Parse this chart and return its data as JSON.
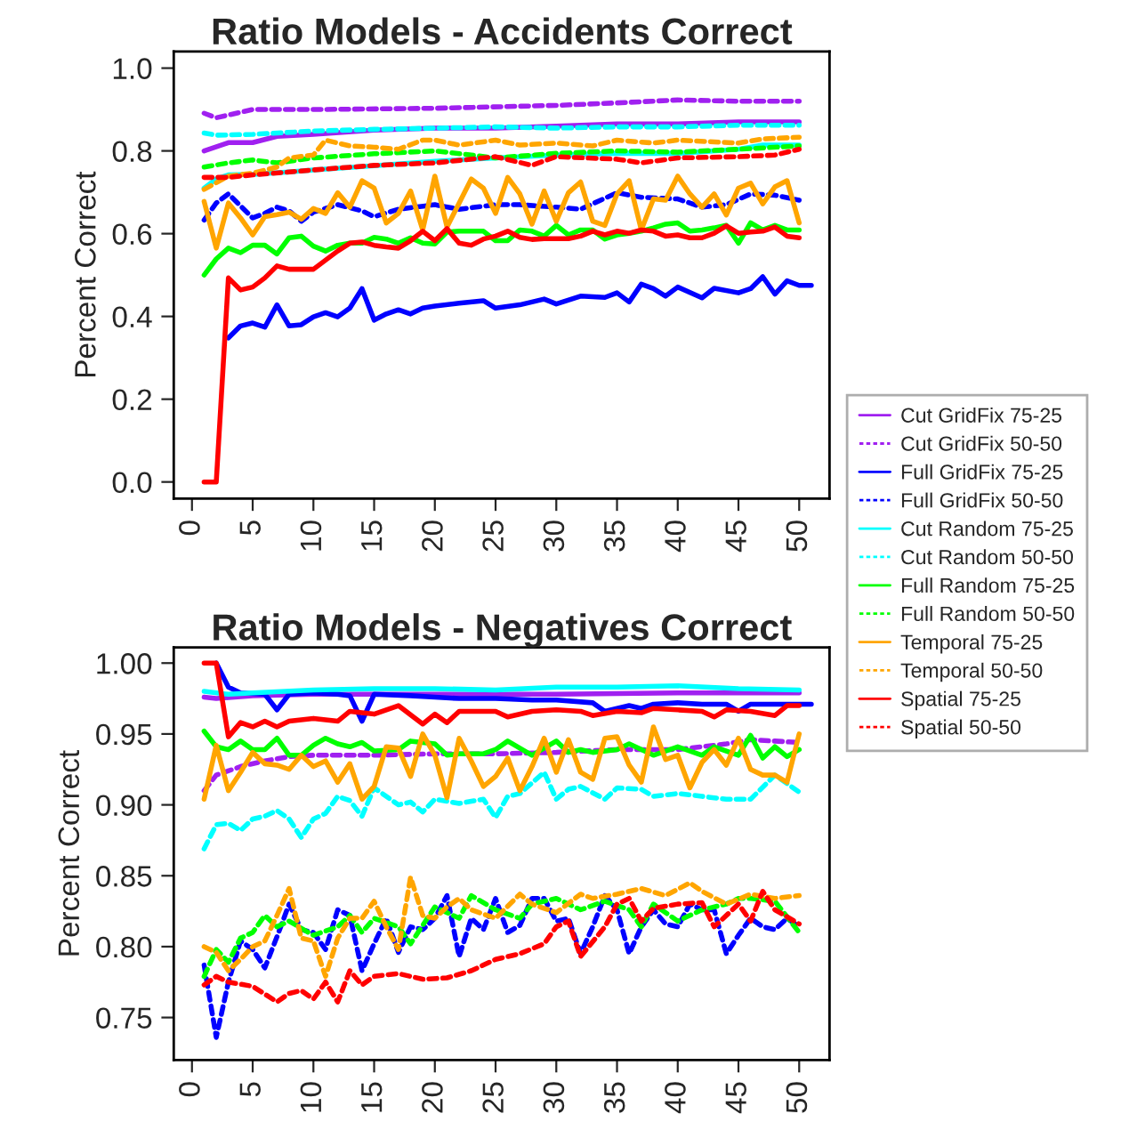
{
  "chart_data": [
    {
      "type": "line",
      "title": "Ratio Models - Accidents Correct",
      "ylabel": "Percent Correct",
      "xlim": [
        -1.5,
        52.5
      ],
      "ylim": [
        -0.04,
        1.04
      ],
      "xticks": [
        0,
        5,
        10,
        15,
        20,
        25,
        30,
        35,
        40,
        45,
        50
      ],
      "yticks": [
        {
          "value": 0,
          "label": "0.0"
        },
        0.2,
        0.4,
        0.6,
        0.8,
        {
          "value": 1,
          "label": "1.0"
        }
      ],
      "grid": false,
      "legend": "right",
      "series": [
        {
          "name": "Cut GridFix 75-25",
          "color": "#a020f0",
          "line_style": "solid",
          "x": [
            1,
            3,
            5,
            7,
            10,
            15,
            20,
            25,
            30,
            35,
            40,
            45,
            50
          ],
          "values": [
            0.8,
            0.82,
            0.82,
            0.835,
            0.84,
            0.85,
            0.855,
            0.855,
            0.86,
            0.865,
            0.865,
            0.87,
            0.87
          ]
        },
        {
          "name": "Cut GridFix 50-50",
          "color": "#a020f0",
          "line_style": "dashed",
          "x": [
            1,
            2,
            5,
            10,
            20,
            30,
            35,
            40,
            45,
            50
          ],
          "values": [
            0.891,
            0.88,
            0.9,
            0.9,
            0.903,
            0.91,
            0.916,
            0.923,
            0.92,
            0.92
          ]
        },
        {
          "name": "Full GridFix 75-25",
          "color": "#0000ff",
          "line_style": "solid",
          "x": [
            3,
            4,
            5,
            6,
            7,
            8,
            9,
            10,
            11,
            12,
            13,
            14,
            15,
            16,
            17,
            18,
            19,
            20,
            22,
            24,
            25,
            27,
            29,
            30,
            32,
            34,
            35,
            36,
            37,
            38,
            39,
            40,
            42,
            43,
            45,
            46,
            47,
            48,
            49,
            50,
            51
          ],
          "values": [
            0.348,
            0.377,
            0.384,
            0.374,
            0.428,
            0.377,
            0.38,
            0.399,
            0.409,
            0.399,
            0.42,
            0.467,
            0.391,
            0.406,
            0.416,
            0.406,
            0.42,
            0.425,
            0.432,
            0.438,
            0.42,
            0.428,
            0.442,
            0.43,
            0.449,
            0.446,
            0.457,
            0.435,
            0.478,
            0.467,
            0.449,
            0.471,
            0.445,
            0.468,
            0.457,
            0.467,
            0.496,
            0.454,
            0.486,
            0.475,
            0.475
          ]
        },
        {
          "name": "Full GridFix 50-50",
          "color": "#0000ff",
          "line_style": "dashed",
          "x": [
            1,
            2,
            3,
            4,
            5,
            6,
            7,
            8,
            9,
            10,
            12,
            14,
            15,
            17,
            20,
            22,
            25,
            27,
            30,
            32,
            35,
            37,
            40,
            42,
            44,
            46,
            48,
            50
          ],
          "values": [
            0.633,
            0.674,
            0.696,
            0.667,
            0.638,
            0.649,
            0.664,
            0.655,
            0.63,
            0.652,
            0.67,
            0.655,
            0.641,
            0.659,
            0.67,
            0.659,
            0.67,
            0.67,
            0.664,
            0.659,
            0.699,
            0.688,
            0.684,
            0.664,
            0.67,
            0.696,
            0.693,
            0.681
          ]
        },
        {
          "name": "Cut Random 75-25",
          "color": "#00ffff",
          "line_style": "solid",
          "x": [
            1,
            2,
            3,
            5,
            8,
            10,
            15,
            20,
            25,
            30,
            35,
            40,
            45,
            47,
            50
          ],
          "values": [
            0.71,
            0.732,
            0.742,
            0.743,
            0.749,
            0.754,
            0.764,
            0.775,
            0.783,
            0.79,
            0.794,
            0.794,
            0.804,
            0.814,
            0.814
          ]
        },
        {
          "name": "Cut Random 50-50",
          "color": "#00ffff",
          "line_style": "dashed",
          "x": [
            1,
            2,
            5,
            10,
            15,
            20,
            25,
            30,
            35,
            40,
            45,
            50
          ],
          "values": [
            0.843,
            0.838,
            0.84,
            0.848,
            0.852,
            0.855,
            0.858,
            0.855,
            0.858,
            0.858,
            0.862,
            0.862
          ]
        },
        {
          "name": "Full Random 75-25",
          "color": "#00ff00",
          "line_style": "solid",
          "x": [
            1,
            2,
            3,
            4,
            5,
            6,
            7,
            8,
            9,
            10,
            11,
            12,
            13,
            14,
            15,
            16,
            17,
            18,
            19,
            20,
            21,
            22,
            23,
            24,
            25,
            26,
            27,
            28,
            29,
            30,
            31,
            32,
            33,
            34,
            35,
            36,
            37,
            38,
            39,
            40,
            41,
            42,
            43,
            44,
            45,
            46,
            47,
            48,
            49,
            50
          ],
          "values": [
            0.5,
            0.539,
            0.565,
            0.554,
            0.572,
            0.572,
            0.551,
            0.59,
            0.594,
            0.57,
            0.558,
            0.572,
            0.577,
            0.577,
            0.591,
            0.587,
            0.577,
            0.59,
            0.577,
            0.575,
            0.604,
            0.606,
            0.606,
            0.606,
            0.583,
            0.583,
            0.609,
            0.606,
            0.594,
            0.62,
            0.597,
            0.609,
            0.609,
            0.587,
            0.597,
            0.601,
            0.606,
            0.614,
            0.623,
            0.626,
            0.606,
            0.609,
            0.614,
            0.62,
            0.577,
            0.626,
            0.609,
            0.62,
            0.609,
            0.609
          ]
        },
        {
          "name": "Full Random 50-50",
          "color": "#00ff00",
          "line_style": "dashed",
          "x": [
            1,
            3,
            5,
            7,
            10,
            15,
            20,
            25,
            30,
            35,
            40,
            45,
            50
          ],
          "values": [
            0.761,
            0.771,
            0.778,
            0.771,
            0.783,
            0.793,
            0.8,
            0.783,
            0.794,
            0.8,
            0.797,
            0.804,
            0.812
          ]
        },
        {
          "name": "Temporal 75-25",
          "color": "#ffa500",
          "line_style": "solid",
          "x": [
            1,
            2,
            3,
            4,
            5,
            6,
            7,
            8,
            9,
            10,
            11,
            12,
            13,
            14,
            15,
            16,
            17,
            18,
            19,
            20,
            21,
            22,
            23,
            24,
            25,
            26,
            27,
            28,
            29,
            30,
            31,
            32,
            33,
            34,
            35,
            36,
            37,
            38,
            39,
            40,
            41,
            42,
            43,
            44,
            45,
            46,
            47,
            48,
            49,
            50
          ],
          "values": [
            0.678,
            0.565,
            0.674,
            0.638,
            0.597,
            0.641,
            0.646,
            0.652,
            0.635,
            0.661,
            0.649,
            0.699,
            0.664,
            0.728,
            0.71,
            0.626,
            0.649,
            0.703,
            0.609,
            0.739,
            0.616,
            0.674,
            0.732,
            0.71,
            0.649,
            0.736,
            0.696,
            0.623,
            0.703,
            0.63,
            0.699,
            0.725,
            0.63,
            0.62,
            0.696,
            0.728,
            0.609,
            0.684,
            0.681,
            0.739,
            0.696,
            0.664,
            0.696,
            0.645,
            0.71,
            0.722,
            0.672,
            0.713,
            0.728,
            0.626
          ]
        },
        {
          "name": "Temporal 50-50",
          "color": "#ffa500",
          "line_style": "dashed",
          "x": [
            1,
            3,
            5,
            7,
            8,
            10,
            11,
            13,
            15,
            17,
            19,
            20,
            22,
            25,
            27,
            30,
            33,
            35,
            38,
            40,
            45,
            47,
            50
          ],
          "values": [
            0.707,
            0.739,
            0.746,
            0.761,
            0.783,
            0.79,
            0.826,
            0.812,
            0.809,
            0.804,
            0.826,
            0.826,
            0.814,
            0.826,
            0.814,
            0.819,
            0.812,
            0.826,
            0.819,
            0.826,
            0.819,
            0.829,
            0.833
          ]
        },
        {
          "name": "Spatial 75-25",
          "color": "#ff0000",
          "line_style": "solid",
          "x": [
            1,
            2,
            3,
            4,
            5,
            6,
            7,
            8,
            9,
            10,
            11,
            12,
            13,
            14,
            15,
            16,
            17,
            18,
            19,
            20,
            21,
            22,
            23,
            24,
            25,
            26,
            27,
            28,
            29,
            30,
            31,
            32,
            33,
            34,
            35,
            36,
            37,
            38,
            39,
            40,
            41,
            42,
            43,
            44,
            45,
            46,
            47,
            48,
            49,
            50
          ],
          "values": [
            0,
            0,
            0.493,
            0.464,
            0.471,
            0.493,
            0.522,
            0.514,
            0.514,
            0.514,
            0.536,
            0.558,
            0.577,
            0.58,
            0.572,
            0.568,
            0.565,
            0.583,
            0.606,
            0.583,
            0.612,
            0.577,
            0.572,
            0.587,
            0.594,
            0.606,
            0.591,
            0.586,
            0.588,
            0.588,
            0.588,
            0.594,
            0.606,
            0.597,
            0.606,
            0.601,
            0.609,
            0.606,
            0.594,
            0.597,
            0.59,
            0.59,
            0.601,
            0.619,
            0.601,
            0.604,
            0.606,
            0.616,
            0.594,
            0.59
          ]
        },
        {
          "name": "Spatial 50-50",
          "color": "#ff0000",
          "line_style": "dashed",
          "x": [
            1,
            3,
            5,
            10,
            15,
            20,
            25,
            28,
            30,
            35,
            37,
            40,
            45,
            48,
            50
          ],
          "values": [
            0.736,
            0.736,
            0.742,
            0.754,
            0.765,
            0.771,
            0.786,
            0.765,
            0.786,
            0.78,
            0.771,
            0.783,
            0.786,
            0.79,
            0.804
          ]
        }
      ]
    },
    {
      "type": "line",
      "title": "Ratio Models - Negatives Correct",
      "ylabel": "Percent Correct",
      "xlim": [
        -1.5,
        52.5
      ],
      "ylim": [
        0.72,
        1.011
      ],
      "xticks": [
        0,
        5,
        10,
        15,
        20,
        25,
        30,
        35,
        40,
        45,
        50
      ],
      "yticks": [
        {
          "value": 0.75,
          "label": "0.75"
        },
        {
          "value": 0.8,
          "label": "0.80"
        },
        {
          "value": 0.85,
          "label": "0.85"
        },
        {
          "value": 0.9,
          "label": "0.90"
        },
        {
          "value": 0.95,
          "label": "0.95"
        },
        {
          "value": 1.0,
          "label": "1.00"
        }
      ],
      "grid": false,
      "series": [
        {
          "color": "#a020f0",
          "line_style": "solid",
          "x": [
            1,
            2,
            5,
            10,
            20,
            30,
            40,
            50
          ],
          "values": [
            0.976,
            0.975,
            0.977,
            0.978,
            0.978,
            0.978,
            0.979,
            0.979
          ]
        },
        {
          "color": "#a020f0",
          "line_style": "dashed",
          "x": [
            1,
            2,
            4,
            6,
            8,
            10,
            15,
            20,
            25,
            30,
            35,
            40,
            44,
            46,
            48,
            50
          ],
          "values": [
            0.91,
            0.921,
            0.927,
            0.931,
            0.934,
            0.935,
            0.935,
            0.936,
            0.936,
            0.937,
            0.939,
            0.939,
            0.943,
            0.946,
            0.945,
            0.944
          ]
        },
        {
          "color": "#0000ff",
          "line_style": "solid",
          "x": [
            2,
            3,
            4,
            6,
            7,
            8,
            10,
            12,
            13,
            14,
            15,
            18,
            20,
            22,
            25,
            28,
            30,
            33,
            34,
            36,
            37,
            38,
            40,
            42,
            44,
            45,
            46,
            48,
            50,
            51
          ],
          "values": [
            1.0,
            0.983,
            0.979,
            0.978,
            0.967,
            0.978,
            0.979,
            0.978,
            0.977,
            0.959,
            0.978,
            0.977,
            0.976,
            0.975,
            0.975,
            0.974,
            0.974,
            0.972,
            0.966,
            0.97,
            0.968,
            0.971,
            0.972,
            0.971,
            0.971,
            0.966,
            0.971,
            0.971,
            0.971,
            0.971
          ]
        },
        {
          "color": "#0000ff",
          "line_style": "dashed",
          "x": [
            1,
            2,
            3,
            4,
            5,
            6,
            7,
            8,
            9,
            10,
            11,
            12,
            13,
            14,
            15,
            16,
            17,
            18,
            19,
            20,
            21,
            22,
            23,
            24,
            25,
            26,
            27,
            28,
            29,
            30,
            31,
            32,
            33,
            34,
            35,
            36,
            37,
            38,
            39,
            40,
            41,
            42,
            43,
            44,
            45,
            46,
            47,
            48,
            49,
            50
          ],
          "values": [
            0.787,
            0.736,
            0.775,
            0.804,
            0.798,
            0.785,
            0.807,
            0.83,
            0.812,
            0.81,
            0.798,
            0.826,
            0.822,
            0.783,
            0.802,
            0.82,
            0.796,
            0.814,
            0.812,
            0.82,
            0.836,
            0.793,
            0.82,
            0.812,
            0.834,
            0.81,
            0.815,
            0.834,
            0.834,
            0.818,
            0.82,
            0.795,
            0.814,
            0.836,
            0.826,
            0.795,
            0.814,
            0.826,
            0.816,
            0.814,
            0.83,
            0.826,
            0.826,
            0.795,
            0.808,
            0.82,
            0.814,
            0.812,
            0.82,
            0.814
          ]
        },
        {
          "color": "#00ffff",
          "line_style": "solid",
          "x": [
            1,
            3,
            5,
            10,
            15,
            20,
            25,
            30,
            35,
            40,
            45,
            50
          ],
          "values": [
            0.98,
            0.978,
            0.979,
            0.981,
            0.982,
            0.982,
            0.981,
            0.983,
            0.983,
            0.984,
            0.982,
            0.981
          ]
        },
        {
          "color": "#00ffff",
          "line_style": "dashed",
          "x": [
            1,
            2,
            3,
            4,
            5,
            6,
            7,
            8,
            9,
            10,
            11,
            12,
            13,
            14,
            15,
            17,
            18,
            19,
            20,
            22,
            24,
            25,
            26,
            27,
            29,
            30,
            31,
            32,
            34,
            35,
            37,
            38,
            40,
            42,
            44,
            46,
            48,
            50
          ],
          "values": [
            0.869,
            0.886,
            0.887,
            0.882,
            0.89,
            0.892,
            0.896,
            0.89,
            0.877,
            0.89,
            0.894,
            0.906,
            0.903,
            0.892,
            0.912,
            0.9,
            0.902,
            0.895,
            0.904,
            0.901,
            0.904,
            0.891,
            0.906,
            0.908,
            0.923,
            0.904,
            0.911,
            0.913,
            0.904,
            0.912,
            0.911,
            0.906,
            0.908,
            0.906,
            0.904,
            0.904,
            0.921,
            0.909
          ]
        },
        {
          "color": "#00ff00",
          "line_style": "solid",
          "x": [
            1,
            2,
            3,
            4,
            5,
            6,
            7,
            8,
            9,
            10,
            11,
            12,
            13,
            14,
            15,
            17,
            18,
            20,
            21,
            22,
            24,
            25,
            26,
            28,
            29,
            30,
            31,
            32,
            33,
            35,
            36,
            38,
            40,
            42,
            43,
            45,
            46,
            47,
            48,
            49,
            50
          ],
          "values": [
            0.952,
            0.941,
            0.939,
            0.945,
            0.939,
            0.939,
            0.947,
            0.935,
            0.935,
            0.942,
            0.947,
            0.943,
            0.941,
            0.944,
            0.938,
            0.939,
            0.945,
            0.943,
            0.935,
            0.936,
            0.936,
            0.939,
            0.945,
            0.935,
            0.94,
            0.945,
            0.937,
            0.939,
            0.937,
            0.939,
            0.943,
            0.935,
            0.941,
            0.935,
            0.941,
            0.935,
            0.949,
            0.933,
            0.941,
            0.934,
            0.939
          ]
        },
        {
          "color": "#00ff00",
          "line_style": "dashed",
          "x": [
            1,
            2,
            3,
            4,
            5,
            6,
            7,
            8,
            10,
            12,
            13,
            14,
            15,
            17,
            18,
            20,
            22,
            23,
            25,
            27,
            28,
            30,
            32,
            34,
            36,
            37,
            38,
            40,
            42,
            44,
            45,
            46,
            48,
            50
          ],
          "values": [
            0.779,
            0.798,
            0.789,
            0.806,
            0.81,
            0.822,
            0.814,
            0.818,
            0.808,
            0.814,
            0.822,
            0.81,
            0.82,
            0.814,
            0.802,
            0.828,
            0.82,
            0.836,
            0.826,
            0.82,
            0.83,
            0.834,
            0.826,
            0.832,
            0.826,
            0.814,
            0.83,
            0.818,
            0.826,
            0.83,
            0.834,
            0.834,
            0.832,
            0.81
          ]
        },
        {
          "color": "#ffa500",
          "line_style": "solid",
          "x": [
            1,
            2,
            3,
            4,
            5,
            6,
            7,
            8,
            9,
            10,
            11,
            12,
            13,
            14,
            15,
            16,
            17,
            18,
            19,
            20,
            21,
            22,
            23,
            24,
            25,
            26,
            27,
            28,
            29,
            30,
            31,
            32,
            33,
            34,
            35,
            36,
            37,
            38,
            39,
            40,
            41,
            42,
            43,
            44,
            45,
            46,
            47,
            48,
            49,
            50
          ],
          "values": [
            0.904,
            0.942,
            0.91,
            0.923,
            0.937,
            0.929,
            0.928,
            0.925,
            0.935,
            0.927,
            0.931,
            0.916,
            0.929,
            0.904,
            0.913,
            0.941,
            0.94,
            0.92,
            0.95,
            0.935,
            0.905,
            0.947,
            0.931,
            0.913,
            0.92,
            0.933,
            0.91,
            0.927,
            0.947,
            0.923,
            0.946,
            0.923,
            0.918,
            0.947,
            0.948,
            0.928,
            0.916,
            0.955,
            0.932,
            0.935,
            0.912,
            0.93,
            0.939,
            0.928,
            0.947,
            0.925,
            0.921,
            0.921,
            0.916,
            0.95
          ]
        },
        {
          "color": "#ffa500",
          "line_style": "dashed",
          "x": [
            1,
            2,
            3,
            4,
            5,
            6,
            7,
            8,
            9,
            10,
            11,
            12,
            13,
            14,
            15,
            16,
            17,
            18,
            19,
            20,
            21,
            22,
            23,
            25,
            27,
            28,
            30,
            32,
            33,
            35,
            37,
            39,
            41,
            42,
            44,
            46,
            48,
            50
          ],
          "values": [
            0.8,
            0.796,
            0.783,
            0.791,
            0.8,
            0.804,
            0.822,
            0.841,
            0.806,
            0.804,
            0.779,
            0.806,
            0.82,
            0.82,
            0.832,
            0.814,
            0.798,
            0.849,
            0.822,
            0.82,
            0.828,
            0.834,
            0.826,
            0.82,
            0.837,
            0.83,
            0.824,
            0.837,
            0.834,
            0.837,
            0.841,
            0.836,
            0.845,
            0.839,
            0.83,
            0.837,
            0.834,
            0.836
          ]
        },
        {
          "color": "#ff0000",
          "line_style": "solid",
          "x": [
            1,
            2,
            3,
            4,
            5,
            6,
            7,
            8,
            10,
            12,
            13,
            15,
            17,
            19,
            20,
            21,
            22,
            25,
            26,
            28,
            30,
            32,
            33,
            35,
            37,
            38,
            40,
            42,
            43,
            44,
            46,
            48,
            49,
            50
          ],
          "values": [
            1.0,
            1.0,
            0.948,
            0.958,
            0.955,
            0.959,
            0.955,
            0.959,
            0.961,
            0.959,
            0.966,
            0.964,
            0.97,
            0.957,
            0.964,
            0.958,
            0.966,
            0.966,
            0.962,
            0.966,
            0.967,
            0.966,
            0.963,
            0.966,
            0.965,
            0.968,
            0.967,
            0.966,
            0.962,
            0.967,
            0.966,
            0.963,
            0.97,
            0.97
          ]
        },
        {
          "color": "#ff0000",
          "line_style": "dashed",
          "x": [
            1,
            2,
            3,
            5,
            7,
            8,
            9,
            10,
            11,
            12,
            13,
            14,
            15,
            17,
            19,
            21,
            23,
            25,
            27,
            29,
            30,
            31,
            32,
            34,
            35,
            36,
            37,
            38,
            40,
            42,
            43,
            45,
            46,
            47,
            48,
            50
          ],
          "values": [
            0.773,
            0.779,
            0.775,
            0.772,
            0.761,
            0.767,
            0.769,
            0.763,
            0.775,
            0.761,
            0.783,
            0.773,
            0.779,
            0.781,
            0.777,
            0.778,
            0.783,
            0.791,
            0.795,
            0.802,
            0.814,
            0.818,
            0.793,
            0.814,
            0.83,
            0.834,
            0.818,
            0.827,
            0.83,
            0.831,
            0.814,
            0.83,
            0.818,
            0.839,
            0.826,
            0.816
          ]
        }
      ]
    }
  ]
}
